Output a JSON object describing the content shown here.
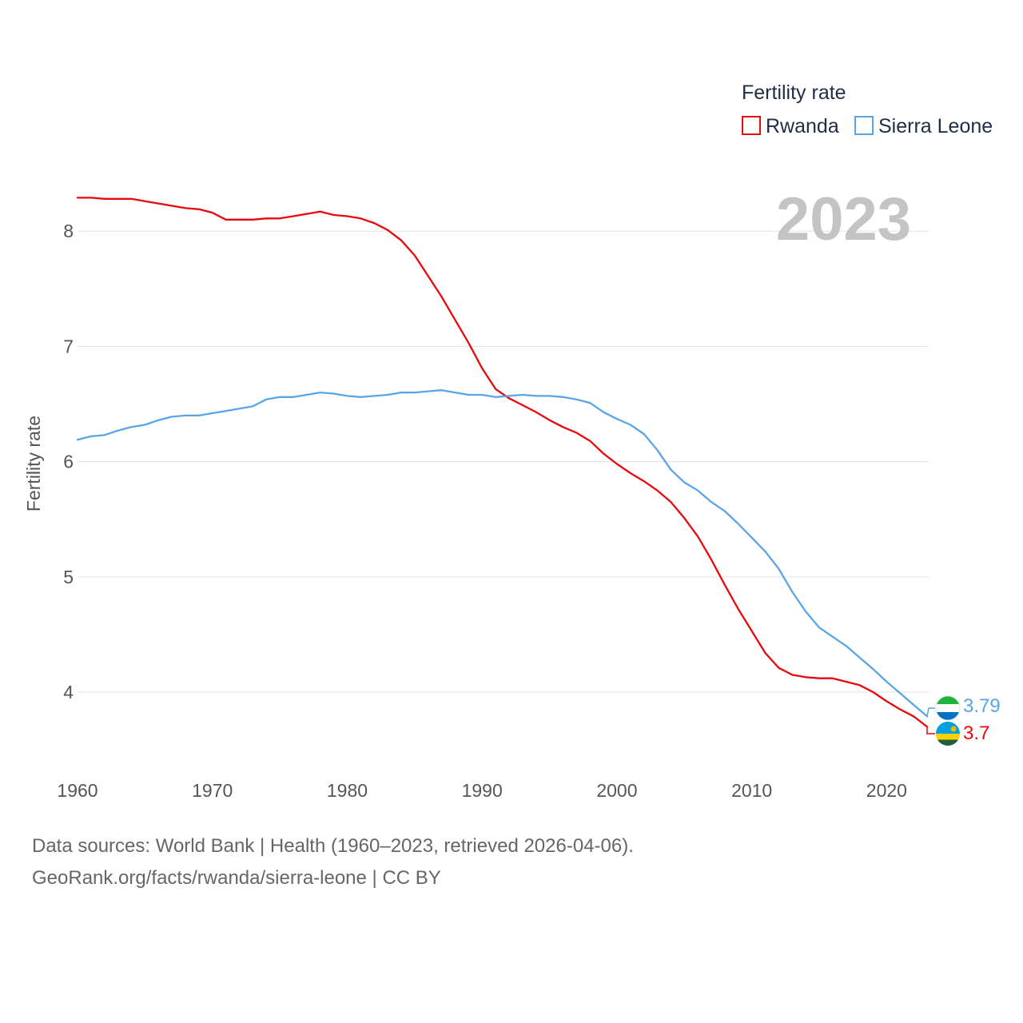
{
  "chart_data": {
    "type": "line",
    "legend_title": "Fertility rate",
    "ylabel": "Fertility rate",
    "xlabel": "",
    "year_label": "2023",
    "xlim": [
      1960,
      2023
    ],
    "ylim": [
      3.4,
      8.5
    ],
    "y_ticks": [
      4,
      5,
      6,
      7,
      8
    ],
    "x_ticks": [
      1960,
      1970,
      1980,
      1990,
      2000,
      2010,
      2020
    ],
    "grid": true,
    "legend_position": "top-right",
    "series": [
      {
        "name": "Rwanda",
        "color": "#e8090c",
        "end_label": "3.7",
        "end_value": 3.7,
        "x": [
          1960,
          1961,
          1962,
          1963,
          1964,
          1965,
          1966,
          1967,
          1968,
          1969,
          1970,
          1971,
          1972,
          1973,
          1974,
          1975,
          1976,
          1977,
          1978,
          1979,
          1980,
          1981,
          1982,
          1983,
          1984,
          1985,
          1986,
          1987,
          1988,
          1989,
          1990,
          1991,
          1992,
          1993,
          1994,
          1995,
          1996,
          1997,
          1998,
          1999,
          2000,
          2001,
          2002,
          2003,
          2004,
          2005,
          2006,
          2007,
          2008,
          2009,
          2010,
          2011,
          2012,
          2013,
          2014,
          2015,
          2016,
          2017,
          2018,
          2019,
          2020,
          2021,
          2022,
          2023
        ],
        "values": [
          8.29,
          8.29,
          8.28,
          8.28,
          8.28,
          8.26,
          8.24,
          8.22,
          8.2,
          8.19,
          8.16,
          8.1,
          8.1,
          8.1,
          8.11,
          8.11,
          8.13,
          8.15,
          8.17,
          8.14,
          8.13,
          8.11,
          8.07,
          8.01,
          7.92,
          7.79,
          7.61,
          7.43,
          7.23,
          7.03,
          6.81,
          6.63,
          6.55,
          6.49,
          6.43,
          6.36,
          6.3,
          6.25,
          6.18,
          6.07,
          5.98,
          5.9,
          5.83,
          5.75,
          5.65,
          5.51,
          5.35,
          5.15,
          4.93,
          4.72,
          4.53,
          4.34,
          4.21,
          4.15,
          4.13,
          4.12,
          4.12,
          4.09,
          4.06,
          4.0,
          3.92,
          3.85,
          3.79,
          3.7
        ]
      },
      {
        "name": "Sierra Leone",
        "color": "#5aa5e6",
        "end_label": "3.79",
        "end_value": 3.79,
        "x": [
          1960,
          1961,
          1962,
          1963,
          1964,
          1965,
          1966,
          1967,
          1968,
          1969,
          1970,
          1971,
          1972,
          1973,
          1974,
          1975,
          1976,
          1977,
          1978,
          1979,
          1980,
          1981,
          1982,
          1983,
          1984,
          1985,
          1986,
          1987,
          1988,
          1989,
          1990,
          1991,
          1992,
          1993,
          1994,
          1995,
          1996,
          1997,
          1998,
          1999,
          2000,
          2001,
          2002,
          2003,
          2004,
          2005,
          2006,
          2007,
          2008,
          2009,
          2010,
          2011,
          2012,
          2013,
          2014,
          2015,
          2016,
          2017,
          2018,
          2019,
          2020,
          2021,
          2022,
          2023
        ],
        "values": [
          6.19,
          6.22,
          6.23,
          6.27,
          6.3,
          6.32,
          6.36,
          6.39,
          6.4,
          6.4,
          6.42,
          6.44,
          6.46,
          6.48,
          6.54,
          6.56,
          6.56,
          6.58,
          6.6,
          6.59,
          6.57,
          6.56,
          6.57,
          6.58,
          6.6,
          6.6,
          6.61,
          6.62,
          6.6,
          6.58,
          6.58,
          6.56,
          6.57,
          6.58,
          6.57,
          6.57,
          6.56,
          6.54,
          6.51,
          6.43,
          6.37,
          6.32,
          6.24,
          6.1,
          5.93,
          5.82,
          5.75,
          5.65,
          5.57,
          5.46,
          5.34,
          5.22,
          5.07,
          4.87,
          4.7,
          4.56,
          4.48,
          4.4,
          4.3,
          4.2,
          4.09,
          3.99,
          3.89,
          3.79
        ]
      }
    ]
  },
  "footer": {
    "line1": "Data sources: World Bank | Health (1960–2023, retrieved 2026-04-06).",
    "line2": "GeoRank.org/facts/rwanda/sierra-leone | CC BY"
  }
}
